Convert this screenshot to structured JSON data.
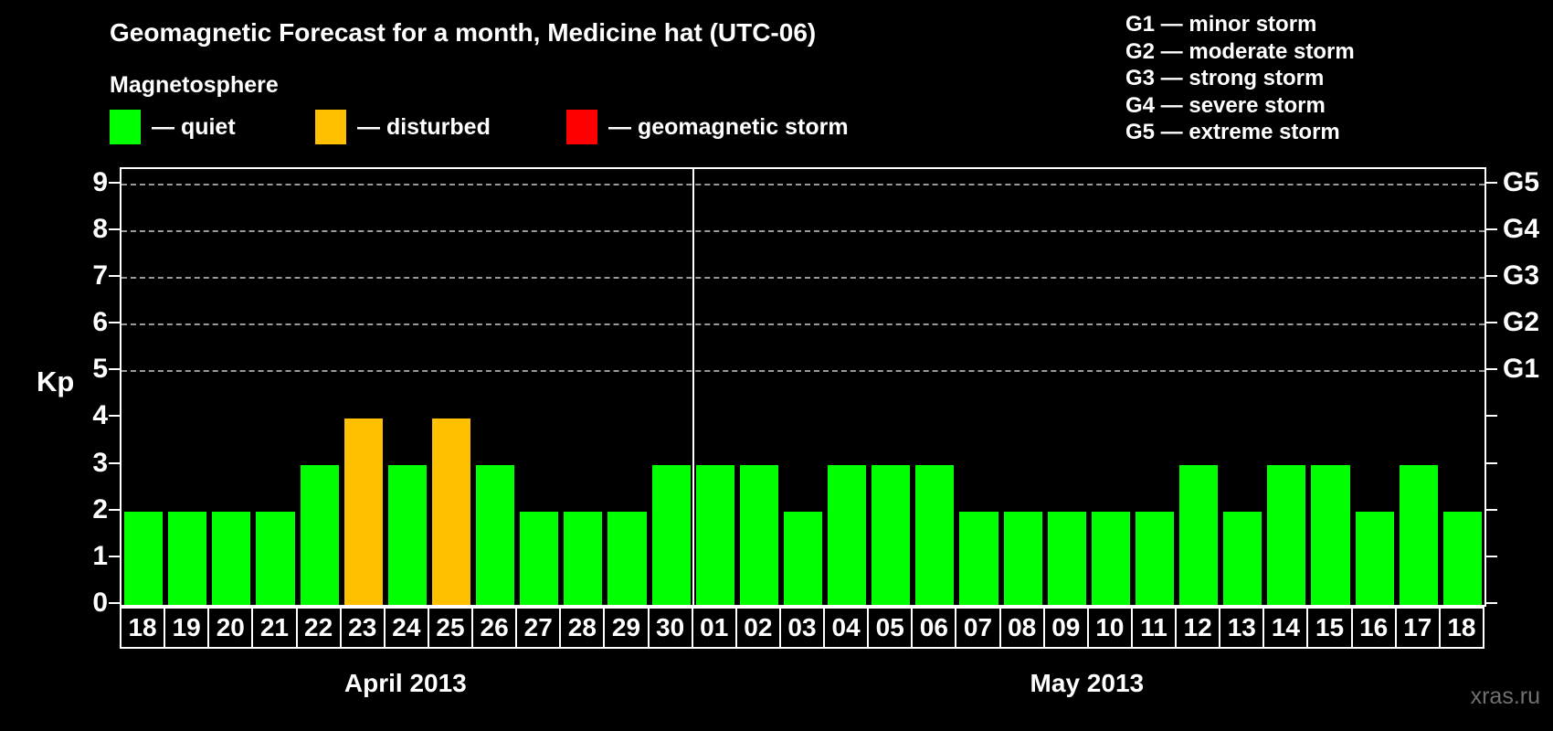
{
  "page": {
    "title": "Geomagnetic Forecast for a month, Medicine hat (UTC-06)",
    "watermark": "xras.ru"
  },
  "legend": {
    "heading": "Magnetosphere",
    "items": [
      {
        "key": "quiet",
        "label": "— quiet",
        "color": "#00ff00"
      },
      {
        "key": "disturbed",
        "label": "— disturbed",
        "color": "#ffc000"
      },
      {
        "key": "storm",
        "label": "— geomagnetic storm",
        "color": "#ff0000"
      }
    ]
  },
  "g_scale_legend": [
    "G1 — minor storm",
    "G2 — moderate storm",
    "G3 — strong storm",
    "G4 — severe storm",
    "G5 — extreme storm"
  ],
  "chart_data": {
    "type": "bar",
    "title": "Geomagnetic Forecast for a month, Medicine hat (UTC-06)",
    "ylabel": "Kp",
    "ylim": [
      0,
      9.33
    ],
    "yticks": [
      0,
      1,
      2,
      3,
      4,
      5,
      6,
      7,
      8,
      9
    ],
    "gridlines_at_kp": [
      5,
      6,
      7,
      8,
      9
    ],
    "grid_style": "dashed",
    "right_axis": [
      {
        "label": "G1",
        "kp": 5
      },
      {
        "label": "G2",
        "kp": 6
      },
      {
        "label": "G3",
        "kp": 7
      },
      {
        "label": "G4",
        "kp": 8
      },
      {
        "label": "G5",
        "kp": 9
      }
    ],
    "status_colors": {
      "quiet": "#00ff00",
      "disturbed": "#ffc000",
      "storm": "#ff0000"
    },
    "months": [
      {
        "label": "April 2013",
        "start_index": 0,
        "days": 13
      },
      {
        "label": "May 2013",
        "start_index": 13,
        "days": 18
      }
    ],
    "bars": [
      {
        "date": "18",
        "month": "April 2013",
        "kp": 2,
        "status": "quiet"
      },
      {
        "date": "19",
        "month": "April 2013",
        "kp": 2,
        "status": "quiet"
      },
      {
        "date": "20",
        "month": "April 2013",
        "kp": 2,
        "status": "quiet"
      },
      {
        "date": "21",
        "month": "April 2013",
        "kp": 2,
        "status": "quiet"
      },
      {
        "date": "22",
        "month": "April 2013",
        "kp": 3,
        "status": "quiet"
      },
      {
        "date": "23",
        "month": "April 2013",
        "kp": 4,
        "status": "disturbed"
      },
      {
        "date": "24",
        "month": "April 2013",
        "kp": 3,
        "status": "quiet"
      },
      {
        "date": "25",
        "month": "April 2013",
        "kp": 4,
        "status": "disturbed"
      },
      {
        "date": "26",
        "month": "April 2013",
        "kp": 3,
        "status": "quiet"
      },
      {
        "date": "27",
        "month": "April 2013",
        "kp": 2,
        "status": "quiet"
      },
      {
        "date": "28",
        "month": "April 2013",
        "kp": 2,
        "status": "quiet"
      },
      {
        "date": "29",
        "month": "April 2013",
        "kp": 2,
        "status": "quiet"
      },
      {
        "date": "30",
        "month": "April 2013",
        "kp": 3,
        "status": "quiet"
      },
      {
        "date": "01",
        "month": "May 2013",
        "kp": 3,
        "status": "quiet"
      },
      {
        "date": "02",
        "month": "May 2013",
        "kp": 3,
        "status": "quiet"
      },
      {
        "date": "03",
        "month": "May 2013",
        "kp": 2,
        "status": "quiet"
      },
      {
        "date": "04",
        "month": "May 2013",
        "kp": 3,
        "status": "quiet"
      },
      {
        "date": "05",
        "month": "May 2013",
        "kp": 3,
        "status": "quiet"
      },
      {
        "date": "06",
        "month": "May 2013",
        "kp": 3,
        "status": "quiet"
      },
      {
        "date": "07",
        "month": "May 2013",
        "kp": 2,
        "status": "quiet"
      },
      {
        "date": "08",
        "month": "May 2013",
        "kp": 2,
        "status": "quiet"
      },
      {
        "date": "09",
        "month": "May 2013",
        "kp": 2,
        "status": "quiet"
      },
      {
        "date": "10",
        "month": "May 2013",
        "kp": 2,
        "status": "quiet"
      },
      {
        "date": "11",
        "month": "May 2013",
        "kp": 2,
        "status": "quiet"
      },
      {
        "date": "12",
        "month": "May 2013",
        "kp": 3,
        "status": "quiet"
      },
      {
        "date": "13",
        "month": "May 2013",
        "kp": 2,
        "status": "quiet"
      },
      {
        "date": "14",
        "month": "May 2013",
        "kp": 3,
        "status": "quiet"
      },
      {
        "date": "15",
        "month": "May 2013",
        "kp": 3,
        "status": "quiet"
      },
      {
        "date": "16",
        "month": "May 2013",
        "kp": 2,
        "status": "quiet"
      },
      {
        "date": "17",
        "month": "May 2013",
        "kp": 3,
        "status": "quiet"
      },
      {
        "date": "18",
        "month": "May 2013",
        "kp": 2,
        "status": "quiet"
      }
    ]
  }
}
